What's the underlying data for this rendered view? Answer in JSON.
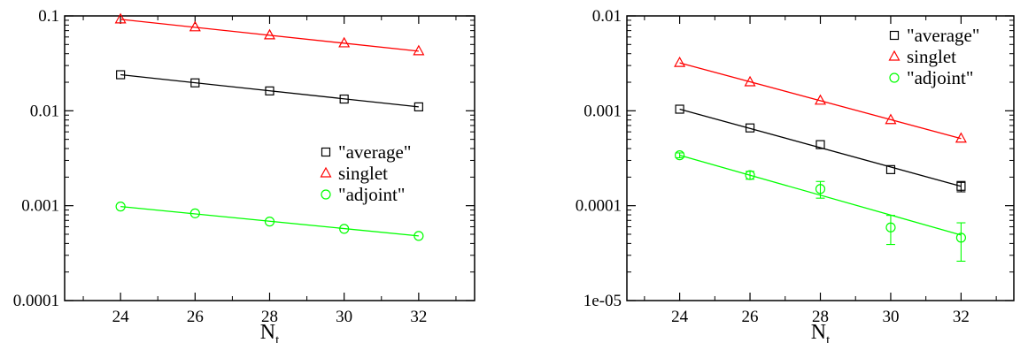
{
  "chart_data": [
    {
      "type": "scatter",
      "title": "",
      "xlabel": "N",
      "xlabel_sub": "t",
      "ylabel": "",
      "xlim": [
        22.5,
        33.5
      ],
      "ylim": [
        0.0001,
        0.1
      ],
      "yscale": "log",
      "xticks": [
        24,
        26,
        28,
        30,
        32
      ],
      "xtick_labels": [
        "24",
        "26",
        "28",
        "30",
        "32"
      ],
      "yticks": [
        0.0001,
        0.001,
        0.01,
        0.1
      ],
      "ytick_labels": [
        "0.0001",
        "0.001",
        "0.01",
        "0.1"
      ],
      "grid": false,
      "legend_position": "center-right",
      "legend": [
        "\"average\"",
        "singlet",
        "\"adjoint\""
      ],
      "series": [
        {
          "name": "\"average\"",
          "marker": "square",
          "color": "#000000",
          "x": [
            24,
            26,
            28,
            30,
            32
          ],
          "y": [
            0.024,
            0.0197,
            0.0162,
            0.0133,
            0.011
          ],
          "yerr": [
            0,
            0,
            0,
            0,
            0
          ],
          "fit": [
            0.024,
            0.011
          ]
        },
        {
          "name": "singlet",
          "marker": "triangle",
          "color": "#ff0000",
          "x": [
            24,
            26,
            28,
            30,
            32
          ],
          "y": [
            0.092,
            0.076,
            0.0625,
            0.0515,
            0.0425
          ],
          "yerr": [
            0,
            0,
            0,
            0,
            0
          ],
          "fit": [
            0.092,
            0.0425
          ]
        },
        {
          "name": "\"adjoint\"",
          "marker": "circle",
          "color": "#00ff00",
          "x": [
            24,
            26,
            28,
            30,
            32
          ],
          "y": [
            0.00098,
            0.00083,
            0.00068,
            0.00057,
            0.00048
          ],
          "yerr": [
            0,
            0,
            0,
            0,
            0
          ],
          "fit": [
            0.00098,
            0.00048
          ]
        }
      ]
    },
    {
      "type": "scatter",
      "title": "",
      "xlabel": "N",
      "xlabel_sub": "t",
      "ylabel": "",
      "xlim": [
        22.5,
        33.5
      ],
      "ylim": [
        1e-05,
        0.01
      ],
      "yscale": "log",
      "xticks": [
        24,
        26,
        28,
        30,
        32
      ],
      "xtick_labels": [
        "24",
        "26",
        "28",
        "30",
        "32"
      ],
      "yticks": [
        1e-05,
        0.0001,
        0.001,
        0.01
      ],
      "ytick_labels": [
        "1e-05",
        "0.0001",
        "0.001",
        "0.01"
      ],
      "grid": false,
      "legend_position": "top-right",
      "legend": [
        "\"average\"",
        "singlet",
        "\"adjoint\""
      ],
      "series": [
        {
          "name": "\"average\"",
          "marker": "square",
          "color": "#000000",
          "x": [
            24,
            26,
            28,
            30,
            32
          ],
          "y": [
            0.00104,
            0.00066,
            0.00044,
            0.00024,
            0.00016
          ],
          "yerr": [
            0,
            0,
            0,
            0,
            2e-05
          ],
          "fit": [
            0.00104,
            0.00016
          ]
        },
        {
          "name": "singlet",
          "marker": "triangle",
          "color": "#ff0000",
          "x": [
            24,
            26,
            28,
            30,
            32
          ],
          "y": [
            0.0032,
            0.002,
            0.00128,
            0.0008,
            0.00051
          ],
          "yerr": [
            0,
            0,
            0,
            0,
            0
          ],
          "fit": [
            0.0032,
            0.00051
          ]
        },
        {
          "name": "\"adjoint\"",
          "marker": "circle",
          "color": "#00ff00",
          "x": [
            24,
            26,
            28,
            30,
            32
          ],
          "y": [
            0.00034,
            0.00021,
            0.00015,
            5.9e-05,
            4.6e-05
          ],
          "yerr": [
            2e-05,
            2e-05,
            3e-05,
            2e-05,
            2e-05
          ],
          "fit": [
            0.00034,
            4.9e-05
          ]
        }
      ]
    }
  ]
}
